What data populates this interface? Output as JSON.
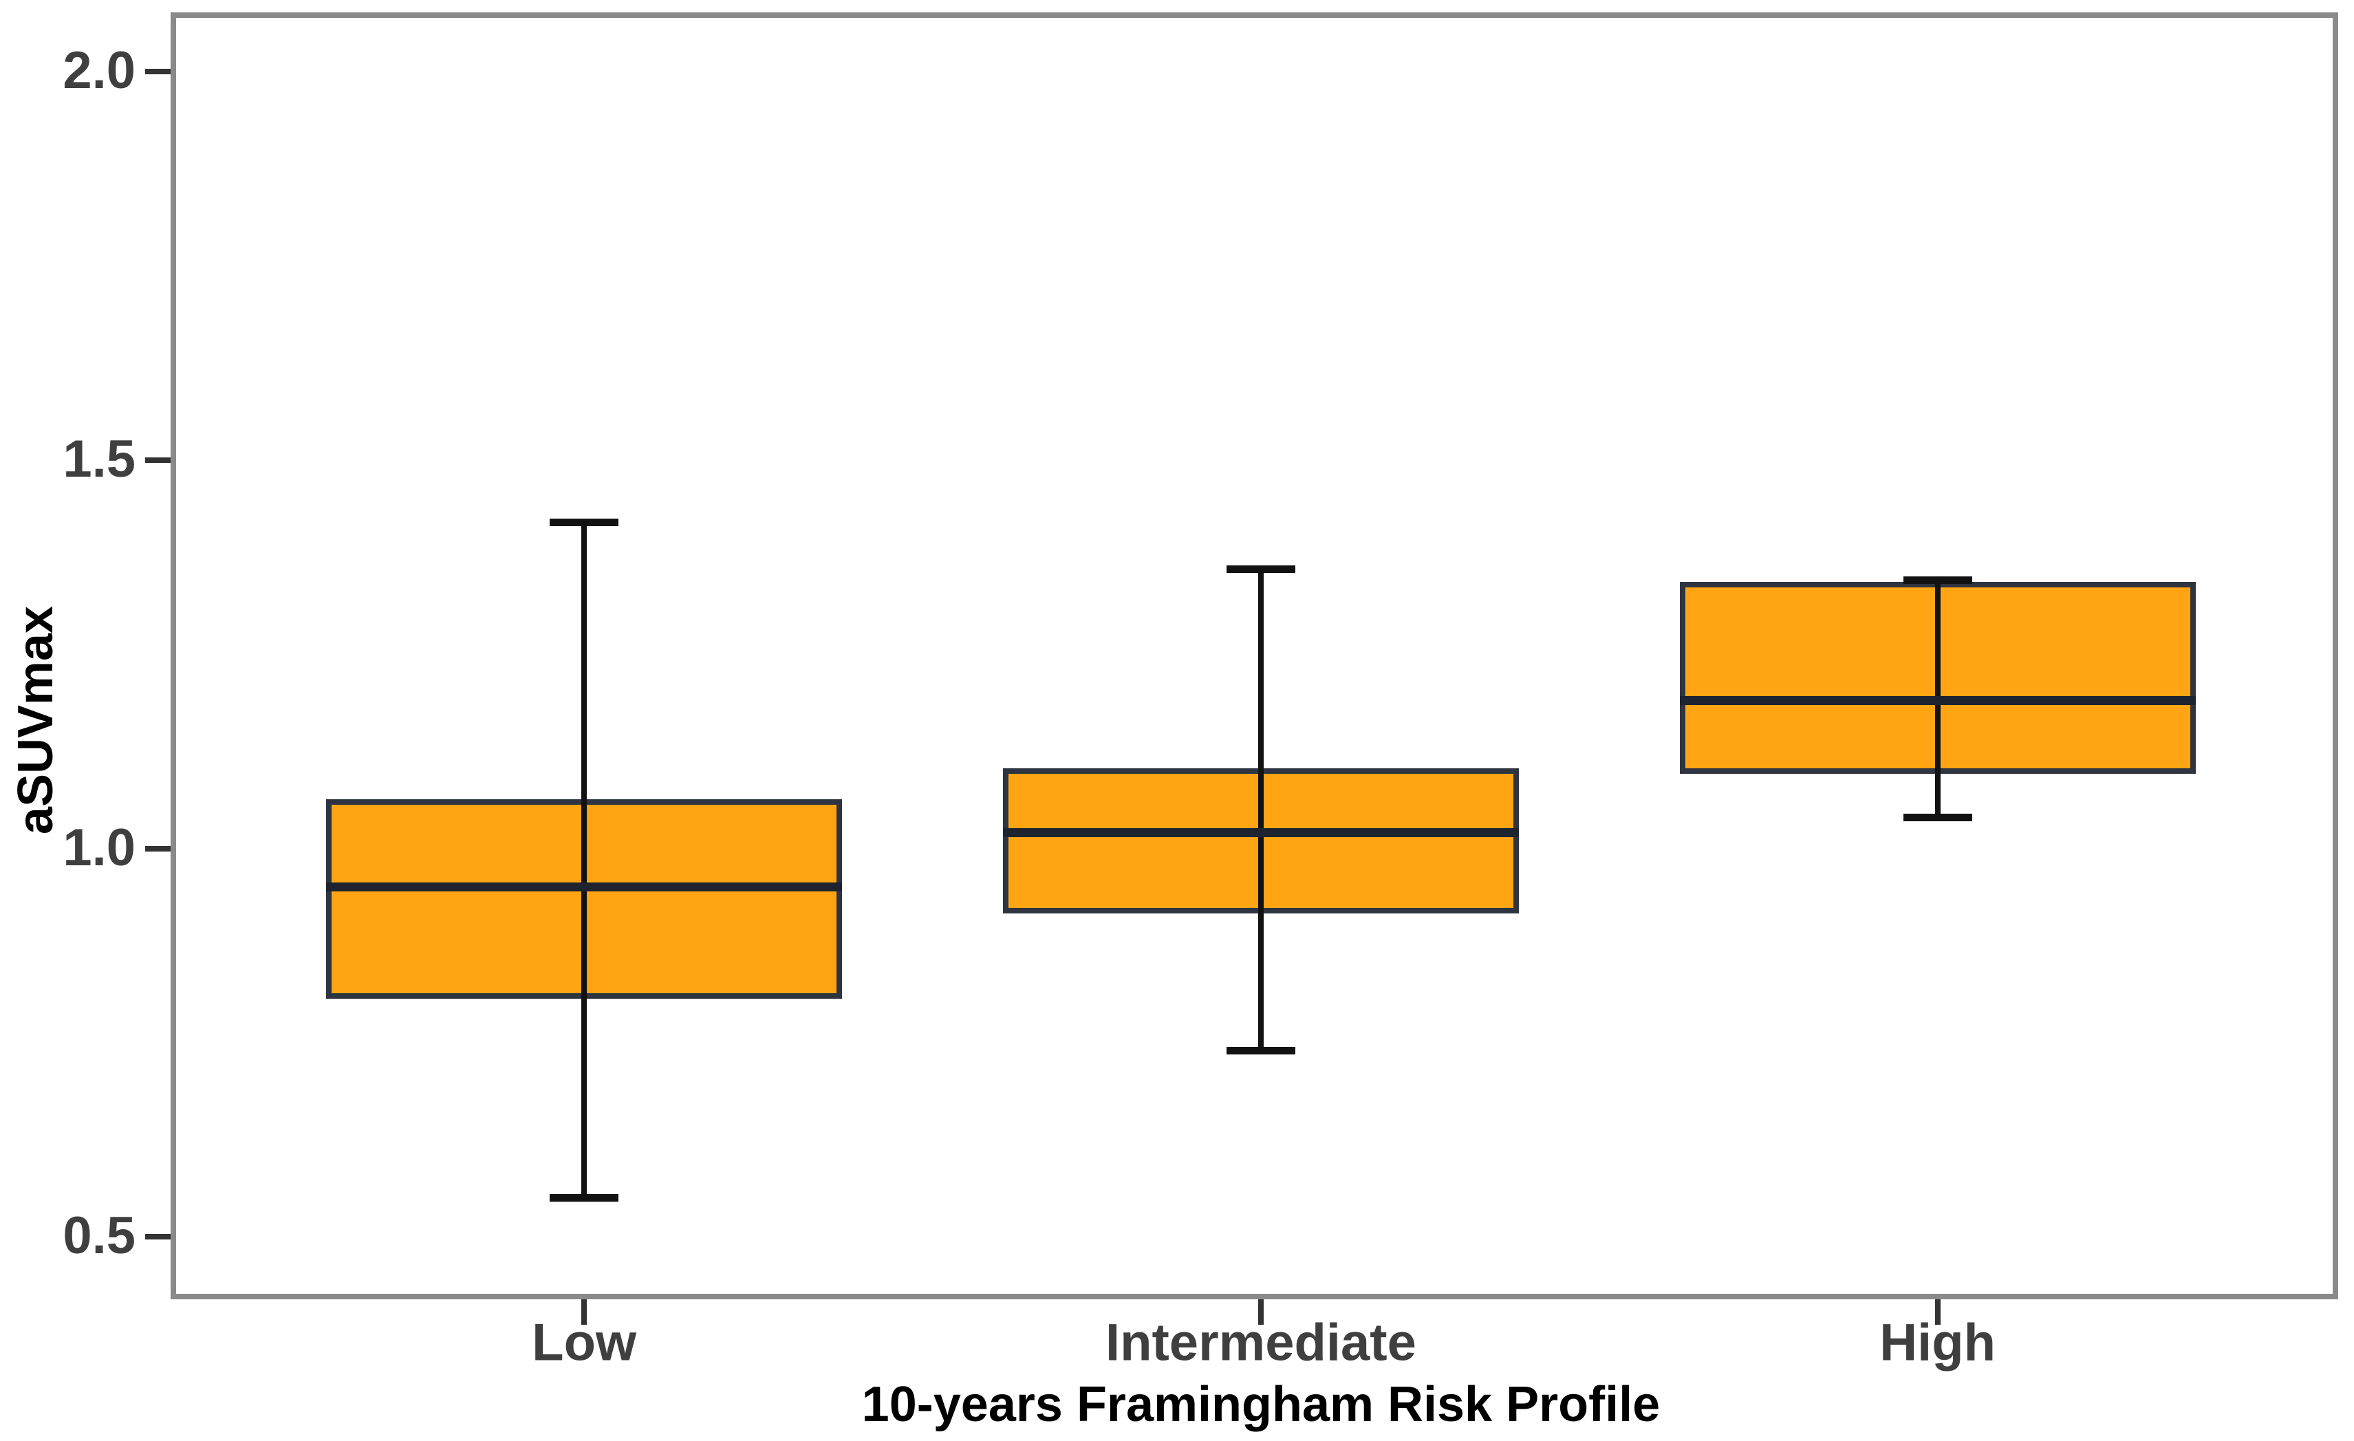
{
  "chart_data": {
    "type": "boxplot",
    "title": "",
    "xlabel": "10-years Framingham Risk Profile",
    "ylabel": "aSUVmax",
    "categories": [
      "Low",
      "Intermediate",
      "High"
    ],
    "series": [
      {
        "category": "Low",
        "whisker_low": 0.55,
        "q1": 0.81,
        "median": 0.95,
        "q3": 1.06,
        "whisker_high": 1.42
      },
      {
        "category": "Intermediate",
        "whisker_low": 0.74,
        "q1": 0.92,
        "median": 1.02,
        "q3": 1.1,
        "whisker_high": 1.36
      },
      {
        "category": "High",
        "whisker_low": 1.04,
        "q1": 1.1,
        "median": 1.19,
        "q3": 1.34,
        "whisker_high": 1.345
      }
    ],
    "y_ticks": [
      {
        "value": 2.0,
        "label": "2.0"
      },
      {
        "value": 1.5,
        "label": "1.5"
      },
      {
        "value": 1.0,
        "label": "1.0"
      },
      {
        "value": 0.5,
        "label": "0.5"
      }
    ],
    "ylim": [
      0.423,
      2.073
    ],
    "grid": "off",
    "legend": "none"
  },
  "colors": {
    "background": "#FFFFFF",
    "box_fill": "#FFA513",
    "box_border": "#2E3440",
    "median": "#1D2430",
    "whisker": "#121212",
    "panel_border": "#8A8A8A",
    "tick_mark": "#333333",
    "tick_label": "#3F3F3F",
    "axis_title": "#000000"
  }
}
